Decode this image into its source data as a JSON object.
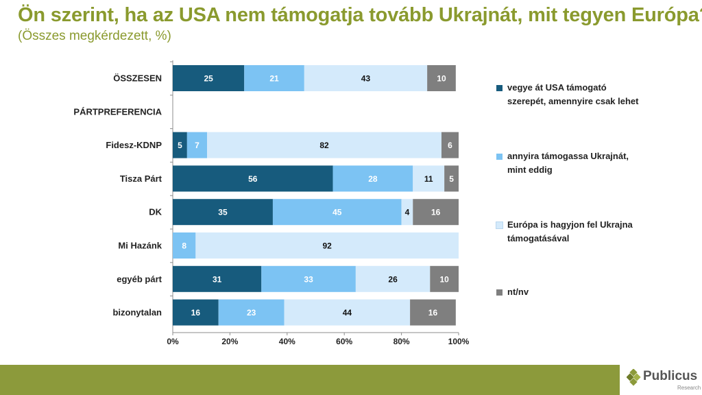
{
  "title": "Ön szerint, ha az USA nem támogatja tovább Ukrajnát, mit tegyen Európa?",
  "subtitle": "(Összes megkérdezett, %)",
  "chart_data": {
    "type": "bar",
    "orientation": "horizontal-stacked-100",
    "categories": [
      "ÖSSZESEN",
      "PÁRTPREFERENCIA",
      "Fidesz-KDNP",
      "Tisza Párt",
      "DK",
      "Mi Hazánk",
      "egyéb párt",
      "bizonytalan"
    ],
    "series": [
      {
        "name": "vegye át USA támogató szerepét, amennyire csak lehet",
        "color": "#175b7d",
        "values": [
          25,
          null,
          5,
          56,
          35,
          0,
          31,
          16
        ]
      },
      {
        "name": "annyira támogassa Ukrajnát, mint eddig",
        "color": "#7cc3f3",
        "values": [
          21,
          null,
          7,
          28,
          45,
          8,
          33,
          23
        ]
      },
      {
        "name": "Európa is hagyjon fel Ukrajna támogatásával",
        "color": "#d4eafb",
        "values": [
          43,
          null,
          82,
          11,
          4,
          92,
          26,
          44
        ]
      },
      {
        "name": "nt/nv",
        "color": "#7f7f7f",
        "values": [
          10,
          null,
          6,
          5,
          16,
          0,
          10,
          16
        ]
      }
    ],
    "xaxis": {
      "ticks": [
        "0%",
        "20%",
        "40%",
        "60%",
        "80%",
        "100%"
      ],
      "range": [
        0,
        100
      ]
    },
    "legend_position": "right"
  },
  "legend": [
    {
      "line1": "vegye át USA támogató",
      "line2": "szerepét, amennyire csak lehet",
      "color": "#175b7d"
    },
    {
      "line1": "annyira támogassa Ukrajnát,",
      "line2": "mint eddig",
      "color": "#7cc3f3"
    },
    {
      "line1": "Európa is hagyjon fel Ukrajna",
      "line2": "támogatásával",
      "color": "#d4eafb"
    },
    {
      "line1": "nt/nv",
      "line2": "",
      "color": "#7f7f7f"
    }
  ],
  "footer": {
    "brand": "Publicus",
    "brand_sub": "Research",
    "bar_color": "#8c9a3b"
  }
}
